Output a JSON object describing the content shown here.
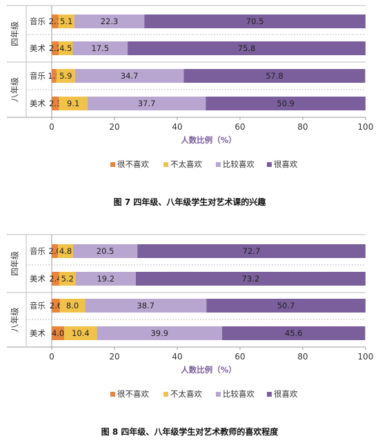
{
  "colors": {
    "segments": [
      "#e8843c",
      "#f0c24a",
      "#b8a6d0",
      "#7a5f9c"
    ],
    "grid": "#bdbdbd",
    "axis": "#999999",
    "xlabel": "#7a5f9c",
    "text": "#333333"
  },
  "chart_data": [
    {
      "type": "bar",
      "orientation": "horizontal",
      "stacked": true,
      "groups": [
        "四年级",
        "八年级"
      ],
      "categories": [
        "音乐",
        "美术",
        "音乐",
        "美术"
      ],
      "series": [
        {
          "name": "很不喜欢",
          "values": [
            2.1,
            2.2,
            1.5,
            2.3
          ]
        },
        {
          "name": "不太喜欢",
          "values": [
            5.1,
            4.5,
            5.9,
            9.1
          ]
        },
        {
          "name": "比较喜欢",
          "values": [
            22.3,
            17.5,
            34.7,
            37.7
          ]
        },
        {
          "name": "很喜欢",
          "values": [
            70.5,
            75.8,
            57.8,
            50.9
          ]
        }
      ],
      "xlabel": "人数比例（%）",
      "xlim": [
        0,
        100
      ],
      "xticks": [
        "0",
        "20",
        "40",
        "60",
        "80",
        "100"
      ],
      "legend": "bottom",
      "caption": "图 7   四年级、八年级学生对艺术课的兴趣"
    },
    {
      "type": "bar",
      "orientation": "horizontal",
      "stacked": true,
      "groups": [
        "四年级",
        "八年级"
      ],
      "categories": [
        "音乐",
        "美术",
        "音乐",
        "美术"
      ],
      "series": [
        {
          "name": "很不喜欢",
          "values": [
            2.0,
            2.4,
            2.6,
            4.0
          ]
        },
        {
          "name": "不太喜欢",
          "values": [
            4.8,
            5.2,
            8.0,
            10.4
          ]
        },
        {
          "name": "比较喜欢",
          "values": [
            20.5,
            19.2,
            38.7,
            39.9
          ]
        },
        {
          "name": "很喜欢",
          "values": [
            72.7,
            73.2,
            50.7,
            45.6
          ]
        }
      ],
      "xlabel": "人数比例（%）",
      "xlim": [
        0,
        100
      ],
      "xticks": [
        "0",
        "20",
        "40",
        "60",
        "80",
        "100"
      ],
      "legend": "bottom",
      "caption": "图 8   四年级、八年级学生对艺术教师的喜欢程度"
    }
  ]
}
